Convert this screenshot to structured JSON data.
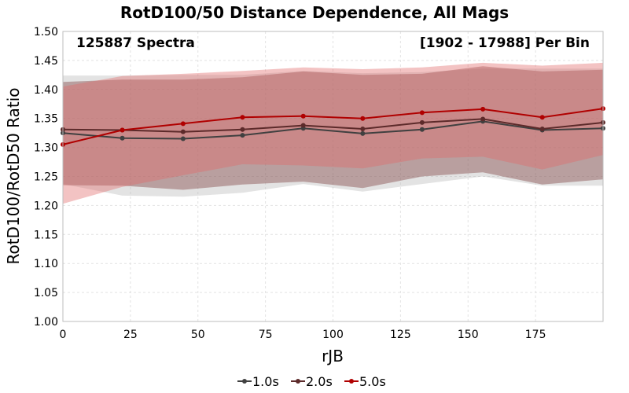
{
  "chart_data": {
    "type": "line",
    "title": "RotD100/50 Distance Dependence, All Mags",
    "annotations": {
      "left": "125887 Spectra",
      "right": "[1902 - 17988] Per Bin"
    },
    "xlabel": "rJB",
    "ylabel": "RotD100/RotD50 Ratio",
    "xlim": [
      0,
      200
    ],
    "ylim": [
      1.0,
      1.5
    ],
    "xticks": [
      "0",
      "25",
      "50",
      "75",
      "100",
      "125",
      "150",
      "175"
    ],
    "yticks": [
      "1.00",
      "1.05",
      "1.10",
      "1.15",
      "1.20",
      "1.25",
      "1.30",
      "1.35",
      "1.40",
      "1.45",
      "1.50"
    ],
    "grid": true,
    "legend_position": "bottom",
    "x": [
      0,
      22,
      44.5,
      66.5,
      89,
      111,
      133,
      155.5,
      177.5,
      200
    ],
    "series": [
      {
        "name": "1.0s",
        "color": "#404040",
        "values": [
          1.325,
          1.316,
          1.315,
          1.321,
          1.333,
          1.324,
          1.331,
          1.345,
          1.33,
          1.333
        ],
        "band_upper": [
          1.424,
          1.424,
          1.425,
          1.425,
          1.432,
          1.428,
          1.43,
          1.436,
          1.436,
          1.436
        ],
        "band_lower": [
          1.237,
          1.217,
          1.215,
          1.222,
          1.237,
          1.224,
          1.237,
          1.25,
          1.234,
          1.234
        ],
        "band_color": "#b8b8b8"
      },
      {
        "name": "2.0s",
        "color": "#5c2a2a",
        "values": [
          1.331,
          1.33,
          1.327,
          1.331,
          1.338,
          1.332,
          1.343,
          1.349,
          1.332,
          1.343
        ],
        "band_upper": [
          1.413,
          1.417,
          1.417,
          1.421,
          1.431,
          1.425,
          1.427,
          1.44,
          1.431,
          1.434
        ],
        "band_lower": [
          1.235,
          1.234,
          1.227,
          1.236,
          1.241,
          1.23,
          1.25,
          1.257,
          1.236,
          1.245
        ],
        "band_color": "#7a3a3a"
      },
      {
        "name": "5.0s",
        "color": "#b00000",
        "values": [
          1.305,
          1.33,
          1.341,
          1.352,
          1.354,
          1.35,
          1.36,
          1.366,
          1.352,
          1.367
        ],
        "band_upper": [
          1.405,
          1.423,
          1.427,
          1.432,
          1.438,
          1.435,
          1.438,
          1.446,
          1.441,
          1.446
        ],
        "band_lower": [
          1.203,
          1.232,
          1.252,
          1.271,
          1.269,
          1.264,
          1.281,
          1.284,
          1.262,
          1.287
        ],
        "band_color": "#e06a6a"
      }
    ]
  }
}
